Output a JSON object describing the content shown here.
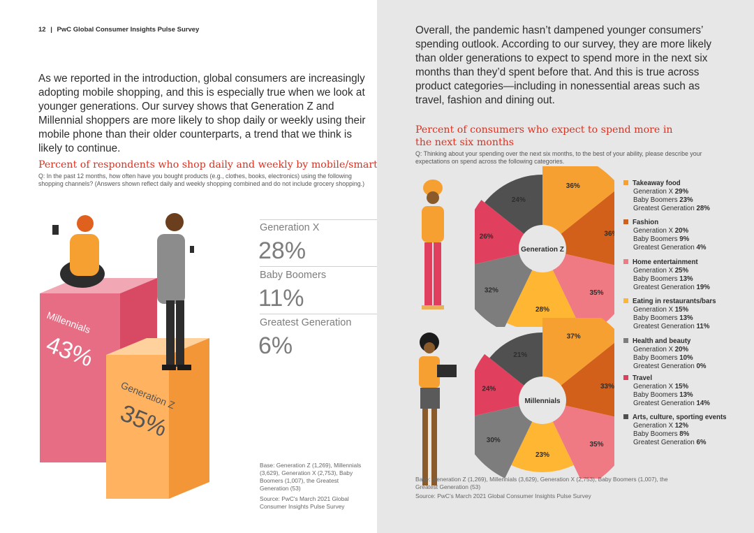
{
  "header": {
    "page_number": "12",
    "separator": "|",
    "title": "PwC Global Consumer Insights Pulse Survey"
  },
  "intro_text": "As we reported in the introduction, global consumers are increasingly adopting mobile shopping, and this is especially true when we look at younger generations. Our survey shows that Generation Z and Millennial shoppers are more likely to shop daily or weekly using their mobile phone than their older counterparts, a trend that we think is likely to continue.",
  "left_chart": {
    "title": "Percent of respondents who shop daily and weekly by mobile/smartphone",
    "question": "Q: In the past 12 months, how often have you bought products (e.g., clothes, books, electronics) using the following shopping channels? (Answers shown reflect daily and weekly shopping combined and do not include grocery shopping.)",
    "source_base": "Base: Generation Z (1,269), Millennials (3,629), Generation X (2,753), Baby Boomers (1,007), the Greatest Generation (53)",
    "source": "Source: PwC's March 2021 Global Consumer Insights Pulse Survey"
  },
  "right_text": "Overall, the pandemic hasn’t dampened younger consumers’ spending outlook. According to our survey, they are more likely than older generations to expect to spend more in the next six months than they’d spent before that. And this is true across product categories—including in nonessential areas such as travel, fashion and dining out.",
  "right_chart": {
    "title": "Percent of consumers who expect to spend more in the next six months",
    "question": "Q: Thinking about your spending over the next six months, to the best of your ability, please describe your expectations on spend across the following categories.",
    "source_base": "Base: Generation Z (1,269), Millennials (3,629), Generation X (2,753), Baby Boomers (1,007), the Greatest Generation (53)",
    "source": "Source: PwC’s March 2021 Global Consumer Insights Pulse Survey"
  },
  "colors": {
    "takeaway": "#f7a032",
    "fashion": "#d2601a",
    "home": "#f07a84",
    "eating": "#ffb633",
    "health": "#7d7d7d",
    "travel": "#e0405e",
    "arts": "#505050",
    "pink_box": "#e66d84",
    "orange_box": "#ffb25f"
  },
  "chart_data": [
    {
      "type": "bar",
      "title": "Percent of respondents who shop daily and weekly by mobile/smartphone",
      "unit": "%",
      "categories": [
        "Millennials",
        "Generation Z",
        "Generation X",
        "Baby Boomers",
        "Greatest Generation"
      ],
      "values": [
        43,
        35,
        28,
        11,
        6
      ],
      "labels": [
        "43%",
        "35%",
        "28%",
        "11%",
        "6%"
      ]
    },
    {
      "type": "pie",
      "title": "Percent of consumers who expect to spend more in the next six months",
      "charts": [
        {
          "center_label": "Generation Z",
          "values": [
            36,
            36,
            35,
            28,
            32,
            26,
            24
          ],
          "labels": [
            "36%",
            "36%",
            "35%",
            "28%",
            "32%",
            "26%",
            "24%"
          ]
        },
        {
          "center_label": "Millennials",
          "values": [
            37,
            33,
            35,
            23,
            30,
            24,
            21
          ],
          "labels": [
            "37%",
            "33%",
            "35%",
            "23%",
            "30%",
            "24%",
            "21%"
          ]
        }
      ],
      "categories": [
        "Takeaway food",
        "Fashion",
        "Home entertainment",
        "Eating in restaurants/bars",
        "Health and beauty",
        "Travel",
        "Arts, culture, sporting events"
      ],
      "legend": [
        {
          "category": "Takeaway food",
          "color": "#f7a032",
          "lines": [
            [
              "Generation X ",
              "29%"
            ],
            [
              "Baby Boomers ",
              "23%"
            ],
            [
              "Greatest Generation ",
              "28%"
            ]
          ]
        },
        {
          "category": "Fashion",
          "color": "#d2601a",
          "lines": [
            [
              "Generation X ",
              "20%"
            ],
            [
              "Baby Boomers ",
              "9%"
            ],
            [
              "Greatest Generation ",
              "4%"
            ]
          ]
        },
        {
          "category": "Home entertainment",
          "color": "#f07a84",
          "lines": [
            [
              "Generation X ",
              "25%"
            ],
            [
              "Baby Boomers ",
              "13%"
            ],
            [
              "Greatest Generation ",
              "19%"
            ]
          ]
        },
        {
          "category": "Eating in restaurants/bars",
          "color": "#ffb633",
          "lines": [
            [
              "Generation X ",
              "15%"
            ],
            [
              "Baby Boomers ",
              "13%"
            ],
            [
              "Greatest Generation ",
              "11%"
            ]
          ]
        },
        {
          "category": "Health and beauty",
          "color": "#7d7d7d",
          "lines": [
            [
              "Generation X ",
              "20%"
            ],
            [
              "Baby Boomers ",
              "10%"
            ],
            [
              "Greatest Generation ",
              "0%"
            ]
          ]
        },
        {
          "category": "Travel",
          "color": "#e0405e",
          "lines": [
            [
              "Generation X ",
              "15%"
            ],
            [
              "Baby Boomers ",
              "13%"
            ],
            [
              "Greatest Generation ",
              "14%"
            ]
          ]
        },
        {
          "category": "Arts, culture, sporting events",
          "color": "#505050",
          "lines": [
            [
              "Generation X ",
              "12%"
            ],
            [
              "Baby Boomers ",
              "8%"
            ],
            [
              "Greatest Generation ",
              "6%"
            ]
          ]
        }
      ]
    }
  ]
}
